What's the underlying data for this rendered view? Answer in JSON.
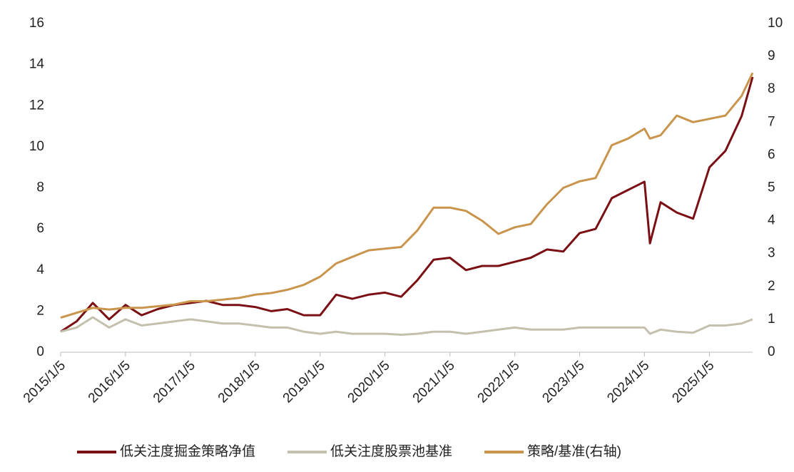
{
  "chart_data": {
    "type": "line",
    "x": [
      "2015/1/5",
      "2015/4/5",
      "2015/7/5",
      "2015/10/5",
      "2016/1/5",
      "2016/4/5",
      "2016/7/5",
      "2016/10/5",
      "2017/1/5",
      "2017/4/5",
      "2017/7/5",
      "2017/10/5",
      "2018/1/5",
      "2018/4/5",
      "2018/7/5",
      "2018/10/5",
      "2019/1/5",
      "2019/4/5",
      "2019/7/5",
      "2019/10/5",
      "2020/1/5",
      "2020/4/5",
      "2020/7/5",
      "2020/10/5",
      "2021/1/5",
      "2021/4/5",
      "2021/7/5",
      "2021/10/5",
      "2022/1/5",
      "2022/4/5",
      "2022/7/5",
      "2022/10/5",
      "2023/1/5",
      "2023/4/5",
      "2023/7/5",
      "2023/10/5",
      "2024/1/5",
      "2024/2/5",
      "2024/4/5",
      "2024/7/5",
      "2024/10/5",
      "2025/1/5",
      "2025/4/5",
      "2025/7/5",
      "2025/9/5"
    ],
    "xlim": [
      "2015/1/5",
      "2025/9/5"
    ],
    "xticks": [
      "2015/1/5",
      "2016/1/5",
      "2017/1/5",
      "2018/1/5",
      "2019/1/5",
      "2020/1/5",
      "2021/1/5",
      "2022/1/5",
      "2023/1/5",
      "2024/1/5",
      "2025/1/5"
    ],
    "ylim": [
      0,
      16
    ],
    "yticks": [
      0,
      2,
      4,
      6,
      8,
      10,
      12,
      14,
      16
    ],
    "y2lim": [
      0,
      10
    ],
    "y2ticks": [
      0,
      1,
      2,
      3,
      4,
      5,
      6,
      7,
      8,
      9,
      10
    ],
    "series": [
      {
        "name": "低关注度掘金策略净值",
        "color": "#7b1014",
        "values": [
          1.0,
          1.5,
          2.4,
          1.6,
          2.3,
          1.8,
          2.1,
          2.3,
          2.4,
          2.5,
          2.3,
          2.3,
          2.2,
          2.0,
          2.1,
          1.8,
          1.8,
          2.8,
          2.6,
          2.8,
          2.9,
          2.7,
          3.5,
          4.5,
          4.6,
          4.0,
          4.2,
          4.2,
          4.4,
          4.6,
          5.0,
          4.9,
          5.8,
          6.0,
          7.5,
          7.9,
          8.3,
          5.3,
          7.3,
          6.8,
          6.5,
          9.0,
          9.8,
          11.5,
          13.4
        ]
      },
      {
        "name": "低关注度股票池基准",
        "color": "#c4c0ae",
        "values": [
          1.0,
          1.2,
          1.7,
          1.2,
          1.6,
          1.3,
          1.4,
          1.5,
          1.6,
          1.5,
          1.4,
          1.4,
          1.3,
          1.2,
          1.2,
          1.0,
          0.9,
          1.0,
          0.9,
          0.9,
          0.9,
          0.85,
          0.9,
          1.0,
          1.0,
          0.9,
          1.0,
          1.1,
          1.2,
          1.1,
          1.1,
          1.1,
          1.2,
          1.2,
          1.2,
          1.2,
          1.2,
          0.9,
          1.1,
          1.0,
          0.95,
          1.3,
          1.3,
          1.4,
          1.6
        ]
      },
      {
        "name": "策略/基准(右轴)",
        "color": "#c9944b",
        "axis": "y2",
        "values": [
          1.05,
          1.2,
          1.35,
          1.3,
          1.35,
          1.35,
          1.4,
          1.45,
          1.55,
          1.55,
          1.6,
          1.65,
          1.75,
          1.8,
          1.9,
          2.05,
          2.3,
          2.7,
          2.9,
          3.1,
          3.15,
          3.2,
          3.7,
          4.4,
          4.4,
          4.3,
          4.0,
          3.6,
          3.8,
          3.9,
          4.5,
          5.0,
          5.2,
          5.3,
          6.3,
          6.5,
          6.8,
          6.5,
          6.6,
          7.2,
          7.0,
          7.1,
          7.2,
          7.8,
          8.5
        ]
      }
    ]
  }
}
